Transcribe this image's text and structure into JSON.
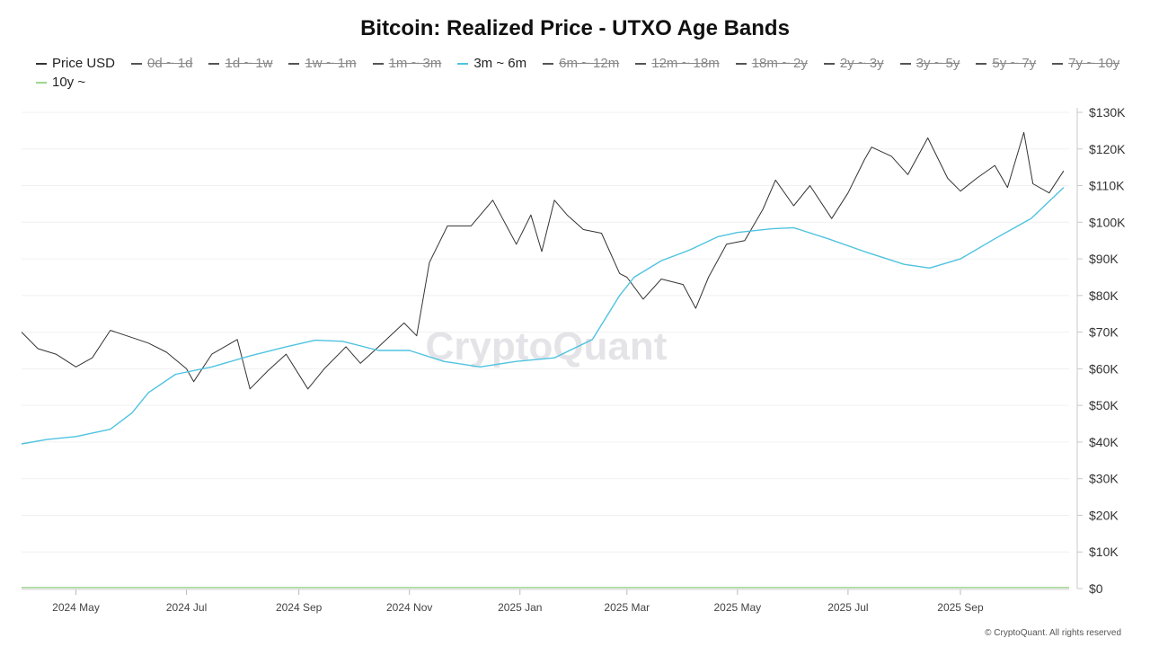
{
  "chart_data": {
    "type": "line",
    "title": "Bitcoin: Realized Price - UTXO Age Bands",
    "xlabel": "",
    "ylabel": "",
    "ylim": [
      0,
      130000
    ],
    "y_ticks": [
      0,
      10000,
      20000,
      30000,
      40000,
      50000,
      60000,
      70000,
      80000,
      90000,
      100000,
      110000,
      120000,
      130000
    ],
    "y_tick_labels": [
      "$0",
      "$10K",
      "$20K",
      "$30K",
      "$40K",
      "$50K",
      "$60K",
      "$70K",
      "$80K",
      "$90K",
      "$100K",
      "$110K",
      "$120K",
      "$130K"
    ],
    "x_range": [
      "2024-04-01",
      "2025-10-31"
    ],
    "x_ticks": [
      "2024-05-01",
      "2024-07-01",
      "2024-09-01",
      "2024-11-01",
      "2025-01-01",
      "2025-03-01",
      "2025-05-01",
      "2025-07-01",
      "2025-09-01"
    ],
    "x_tick_labels": [
      "2024 May",
      "2024 Jul",
      "2024 Sep",
      "2024 Nov",
      "2025 Jan",
      "2025 Mar",
      "2025 May",
      "2025 Jul",
      "2025 Sep"
    ],
    "grid": true,
    "legend_position": "top",
    "legend": [
      {
        "name": "Price USD",
        "color": "#333333",
        "visible": true
      },
      {
        "name": "0d ~ 1d",
        "color": "#555555",
        "visible": false
      },
      {
        "name": "1d ~ 1w",
        "color": "#555555",
        "visible": false
      },
      {
        "name": "1w ~ 1m",
        "color": "#555555",
        "visible": false
      },
      {
        "name": "1m ~ 3m",
        "color": "#555555",
        "visible": false
      },
      {
        "name": "3m ~ 6m",
        "color": "#4fc3e0",
        "visible": true
      },
      {
        "name": "6m ~ 12m",
        "color": "#555555",
        "visible": false
      },
      {
        "name": "12m ~ 18m",
        "color": "#555555",
        "visible": false
      },
      {
        "name": "18m ~ 2y",
        "color": "#555555",
        "visible": false
      },
      {
        "name": "2y ~ 3y",
        "color": "#555555",
        "visible": false
      },
      {
        "name": "3y ~ 5y",
        "color": "#555555",
        "visible": false
      },
      {
        "name": "5y ~ 7y",
        "color": "#555555",
        "visible": false
      },
      {
        "name": "7y ~ 10y",
        "color": "#555555",
        "visible": false
      },
      {
        "name": "10y ~",
        "color": "#9ed58f",
        "visible": true
      }
    ],
    "series": [
      {
        "name": "Price USD",
        "color": "#333333",
        "x": [
          "2024-04-01",
          "2024-04-10",
          "2024-04-20",
          "2024-05-01",
          "2024-05-10",
          "2024-05-20",
          "2024-06-01",
          "2024-06-10",
          "2024-06-20",
          "2024-07-01",
          "2024-07-05",
          "2024-07-15",
          "2024-07-29",
          "2024-08-05",
          "2024-08-15",
          "2024-08-25",
          "2024-09-06",
          "2024-09-15",
          "2024-09-27",
          "2024-10-05",
          "2024-10-15",
          "2024-10-29",
          "2024-11-05",
          "2024-11-12",
          "2024-11-22",
          "2024-12-05",
          "2024-12-17",
          "2024-12-30",
          "2025-01-07",
          "2025-01-13",
          "2025-01-20",
          "2025-01-27",
          "2025-02-05",
          "2025-02-15",
          "2025-02-25",
          "2025-03-01",
          "2025-03-10",
          "2025-03-20",
          "2025-04-01",
          "2025-04-08",
          "2025-04-15",
          "2025-04-25",
          "2025-05-05",
          "2025-05-15",
          "2025-05-22",
          "2025-06-01",
          "2025-06-10",
          "2025-06-22",
          "2025-07-01",
          "2025-07-10",
          "2025-07-14",
          "2025-07-25",
          "2025-08-03",
          "2025-08-14",
          "2025-08-25",
          "2025-09-01",
          "2025-09-10",
          "2025-09-20",
          "2025-09-27",
          "2025-10-06",
          "2025-10-11",
          "2025-10-20",
          "2025-10-28"
        ],
        "values": [
          70000,
          65500,
          64000,
          60500,
          63000,
          70500,
          68500,
          67000,
          64500,
          60000,
          56500,
          64000,
          68000,
          54500,
          59500,
          64000,
          54500,
          60000,
          66000,
          61500,
          66000,
          72500,
          69000,
          89000,
          99000,
          99000,
          106000,
          94000,
          102000,
          92000,
          106000,
          102000,
          98000,
          97000,
          86000,
          85000,
          79000,
          84500,
          83000,
          76500,
          85000,
          94000,
          95000,
          103500,
          111500,
          104500,
          110000,
          101000,
          108000,
          117000,
          120500,
          118000,
          113000,
          123000,
          112000,
          108500,
          112000,
          115500,
          109500,
          124500,
          110500,
          108000,
          114000
        ]
      },
      {
        "name": "3m ~ 6m",
        "color": "#4fc3e0",
        "x": [
          "2024-04-01",
          "2024-04-15",
          "2024-05-01",
          "2024-05-20",
          "2024-06-01",
          "2024-06-10",
          "2024-06-25",
          "2024-07-15",
          "2024-08-05",
          "2024-08-25",
          "2024-09-10",
          "2024-09-25",
          "2024-10-15",
          "2024-11-01",
          "2024-11-20",
          "2024-12-10",
          "2024-12-30",
          "2025-01-20",
          "2025-02-10",
          "2025-02-25",
          "2025-03-05",
          "2025-03-20",
          "2025-04-05",
          "2025-04-20",
          "2025-05-01",
          "2025-05-20",
          "2025-06-01",
          "2025-06-20",
          "2025-07-10",
          "2025-08-01",
          "2025-08-15",
          "2025-09-01",
          "2025-09-20",
          "2025-10-10",
          "2025-10-28"
        ],
        "values": [
          39500,
          40700,
          41500,
          43500,
          48000,
          53500,
          58500,
          60500,
          63500,
          66000,
          67800,
          67500,
          65000,
          65000,
          62000,
          60500,
          62000,
          63000,
          68000,
          80000,
          85000,
          89500,
          92500,
          96000,
          97200,
          98200,
          98500,
          95500,
          92000,
          88500,
          87500,
          90000,
          95500,
          101000,
          109500
        ]
      },
      {
        "name": "10y ~",
        "color": "#9ed58f",
        "x": [
          "2024-04-01",
          "2025-10-31"
        ],
        "values": [
          300,
          300
        ]
      }
    ],
    "watermark": "CryptoQuant",
    "copyright": "© CryptoQuant. All rights reserved"
  }
}
